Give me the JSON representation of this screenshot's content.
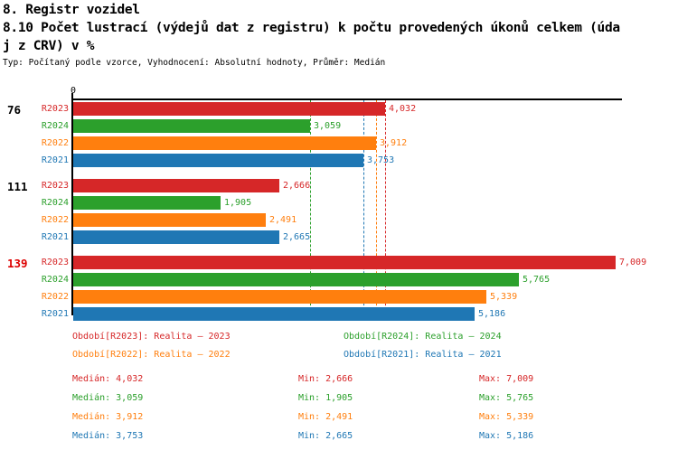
{
  "header": {
    "line1": "8. Registr vozidel",
    "line2": "8.10 Počet lustrací (výdejů dat z registru) k počtu provedených úkonů celkem (úda",
    "line3": "j z CRV) v %",
    "meta": "Typ: Počítaný podle vzorce, Vyhodnocení: Absolutní hodnoty, Průměr: Medián"
  },
  "chart_data": {
    "type": "bar",
    "orientation": "horizontal",
    "title": "8.10 Počet lustrací (výdejů dat z registru) k počtu provedených úkonů celkem (údaj z CRV) v %",
    "zero_label": "0",
    "axis": {
      "xmin": 0,
      "only_tick_shown": "0",
      "grid": false
    },
    "categories": [
      {
        "label": "76",
        "color": "#000000"
      },
      {
        "label": "111",
        "color": "#000000"
      },
      {
        "label": "139",
        "color": "#dd0000"
      }
    ],
    "series": [
      {
        "name": "R2023",
        "color": "#d62728",
        "legend": "Období[R2023]: Realita – 2023",
        "values": [
          4032,
          2666,
          7009
        ],
        "median": 4032,
        "min": 2666,
        "max": 7009
      },
      {
        "name": "R2024",
        "color": "#2ca02c",
        "legend": "Období[R2024]: Realita – 2024",
        "values": [
          3059,
          1905,
          5765
        ],
        "median": 3059,
        "min": 1905,
        "max": 5765
      },
      {
        "name": "R2022",
        "color": "#ff7f0e",
        "legend": "Období[R2022]: Realita – 2022",
        "values": [
          3912,
          2491,
          5339
        ],
        "median": 3912,
        "min": 2491,
        "max": 5339
      },
      {
        "name": "R2021",
        "color": "#1f77b4",
        "legend": "Období[R2021]: Realita – 2021",
        "values": [
          3753,
          2665,
          5186
        ],
        "median": 3753,
        "min": 2665,
        "max": 5186
      }
    ],
    "value_labels": {
      "R2023": [
        "4,032",
        "2,666",
        "7,009"
      ],
      "R2024": [
        "3,059",
        "1,905",
        "5,765"
      ],
      "R2022": [
        "3,912",
        "2,491",
        "5,339"
      ],
      "R2021": [
        "3,753",
        "2,665",
        "5,186"
      ]
    },
    "stats_labels": {
      "median": "Medián",
      "min": "Min",
      "max": "Max"
    },
    "legend_position": "bottom",
    "axis_color": "#000000"
  }
}
